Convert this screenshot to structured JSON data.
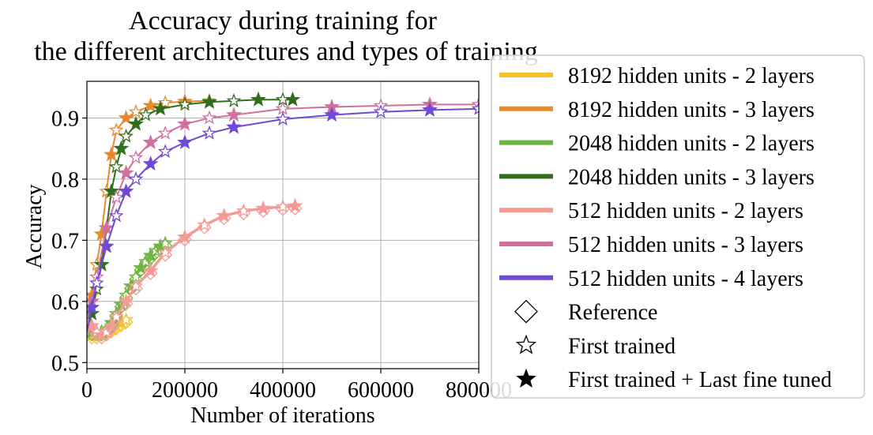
{
  "chart_data": {
    "type": "line",
    "title_lines": [
      "Accuracy during training for",
      "the different architectures and types of training"
    ],
    "xlabel": "Number of iterations",
    "ylabel": "Accuracy",
    "xlim": [
      0,
      800000
    ],
    "ylim": [
      0.49,
      0.96
    ],
    "xticks": [
      0,
      200000,
      400000,
      600000,
      800000
    ],
    "xtick_labels": [
      "0",
      "200000",
      "400000",
      "600000",
      "800000"
    ],
    "yticks": [
      0.5,
      0.6,
      0.7,
      0.8,
      0.9
    ],
    "ytick_labels": [
      "0.5",
      "0.6",
      "0.7",
      "0.8",
      "0.9"
    ],
    "grid": true,
    "legend_position": "right",
    "series": [
      {
        "name": "8192 hidden units - 2 layers",
        "color": "#f4c12d",
        "x": [
          0,
          10000,
          20000,
          30000,
          40000,
          50000,
          60000,
          70000,
          80000
        ],
        "y": [
          0.55,
          0.545,
          0.545,
          0.545,
          0.55,
          0.555,
          0.56,
          0.565,
          0.57
        ]
      },
      {
        "name": "8192 hidden units - 3 layers",
        "color": "#e58a2f",
        "x": [
          0,
          10000,
          20000,
          30000,
          40000,
          50000,
          60000,
          80000,
          100000,
          130000,
          160000,
          200000,
          250000
        ],
        "y": [
          0.58,
          0.61,
          0.66,
          0.71,
          0.78,
          0.84,
          0.88,
          0.9,
          0.91,
          0.92,
          0.925,
          0.927,
          0.928
        ]
      },
      {
        "name": "2048 hidden units - 2 layers",
        "color": "#70b544",
        "x": [
          0,
          10000,
          20000,
          30000,
          40000,
          50000,
          60000,
          70000,
          80000,
          90000,
          100000,
          110000,
          120000,
          130000,
          140000,
          150000,
          160000
        ],
        "y": [
          0.55,
          0.55,
          0.55,
          0.55,
          0.555,
          0.565,
          0.58,
          0.595,
          0.61,
          0.625,
          0.64,
          0.655,
          0.665,
          0.675,
          0.683,
          0.69,
          0.695
        ]
      },
      {
        "name": "2048 hidden units - 3 layers",
        "color": "#306e1e",
        "x": [
          0,
          10000,
          20000,
          30000,
          40000,
          50000,
          60000,
          70000,
          80000,
          100000,
          120000,
          150000,
          200000,
          250000,
          300000,
          350000,
          400000,
          420000
        ],
        "y": [
          0.55,
          0.58,
          0.62,
          0.66,
          0.72,
          0.78,
          0.82,
          0.85,
          0.87,
          0.89,
          0.905,
          0.915,
          0.922,
          0.926,
          0.928,
          0.93,
          0.93,
          0.93
        ]
      },
      {
        "name": "512 hidden units - 2 layers",
        "color": "#f49b96",
        "x": [
          0,
          10000,
          20000,
          30000,
          40000,
          50000,
          60000,
          80000,
          100000,
          130000,
          160000,
          200000,
          240000,
          280000,
          320000,
          360000,
          400000,
          425000
        ],
        "y": [
          0.57,
          0.56,
          0.55,
          0.545,
          0.55,
          0.56,
          0.575,
          0.6,
          0.625,
          0.65,
          0.68,
          0.705,
          0.725,
          0.74,
          0.748,
          0.752,
          0.755,
          0.756
        ]
      },
      {
        "name": "512 hidden units - 3 layers",
        "color": "#d1709e",
        "x": [
          0,
          10000,
          20000,
          40000,
          60000,
          80000,
          100000,
          130000,
          160000,
          200000,
          250000,
          300000,
          400000,
          500000,
          600000,
          700000,
          800000
        ],
        "y": [
          0.57,
          0.6,
          0.64,
          0.72,
          0.77,
          0.81,
          0.835,
          0.86,
          0.875,
          0.89,
          0.9,
          0.905,
          0.915,
          0.918,
          0.92,
          0.922,
          0.922
        ]
      },
      {
        "name": "512 hidden units - 4 layers",
        "color": "#7049d6",
        "x": [
          0,
          10000,
          20000,
          40000,
          60000,
          80000,
          100000,
          130000,
          160000,
          200000,
          250000,
          300000,
          400000,
          500000,
          600000,
          700000,
          800000
        ],
        "y": [
          0.55,
          0.59,
          0.63,
          0.69,
          0.74,
          0.78,
          0.8,
          0.825,
          0.845,
          0.86,
          0.875,
          0.885,
          0.898,
          0.905,
          0.91,
          0.913,
          0.915
        ]
      }
    ],
    "legend_markers": [
      {
        "name": "Reference",
        "marker": "open-diamond"
      },
      {
        "name": "First trained",
        "marker": "open-star"
      },
      {
        "name": "First trained + Last fine tuned",
        "marker": "filled-star"
      }
    ]
  }
}
